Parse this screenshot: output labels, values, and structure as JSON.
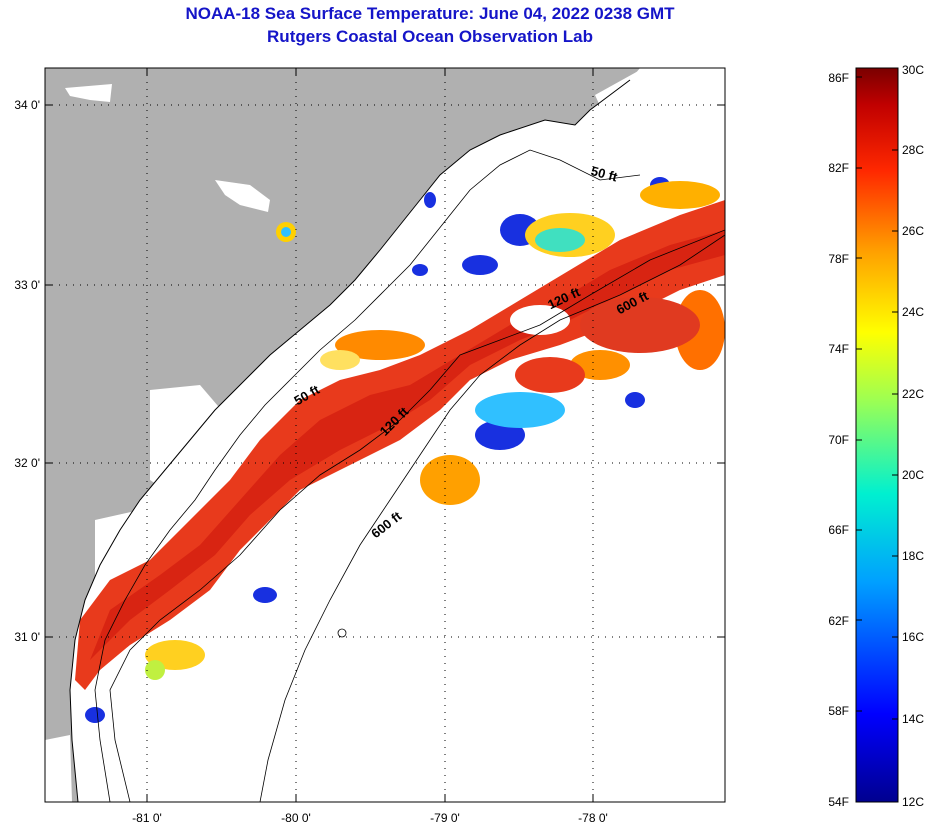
{
  "title": "NOAA-18 Sea Surface Temperature:  June 04, 2022 0238 GMT",
  "subtitle": "Rutgers Coastal Ocean Observation Lab",
  "map": {
    "lat_labels": [
      "34 0'",
      "33 0'",
      "32 0'",
      "31 0'"
    ],
    "lon_labels": [
      "-81 0'",
      "-80 0'",
      "-79 0'",
      "-78 0'"
    ],
    "contour_labels": [
      "50 ft",
      "120 ft",
      "600 ft",
      "50 ft",
      "120 ft",
      "600 ft"
    ],
    "colors": {
      "land": "#b0b0b0",
      "cloud": "#ffffff",
      "warm": "#e8321c",
      "hot": "#cc1a10"
    }
  },
  "colorbar": {
    "fahrenheit_labels": [
      "86F",
      "82F",
      "78F",
      "74F",
      "70F",
      "66F",
      "62F",
      "58F",
      "54F"
    ],
    "celsius_labels": [
      "30C",
      "28C",
      "26C",
      "24C",
      "22C",
      "20C",
      "18C",
      "16C",
      "14C",
      "12C"
    ],
    "range_f": [
      54,
      86
    ],
    "range_c": [
      12,
      30
    ]
  }
}
